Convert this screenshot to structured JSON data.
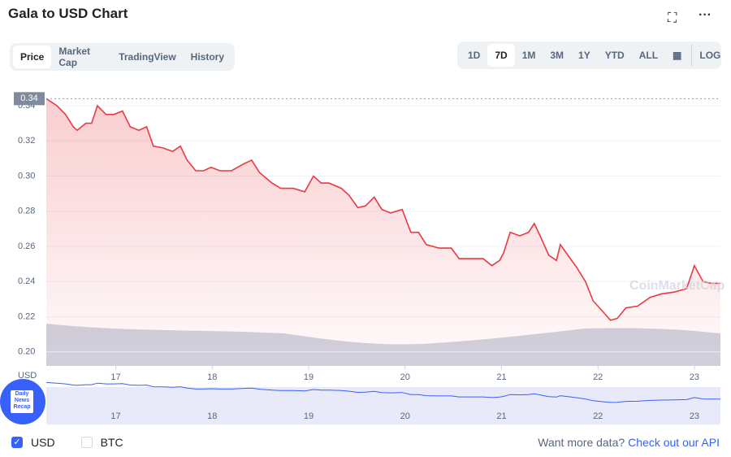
{
  "header": {
    "title": "Gala to USD Chart"
  },
  "tabs": {
    "items": [
      "Price",
      "Market Cap",
      "TradingView",
      "History"
    ],
    "active": 0
  },
  "ranges": {
    "items": [
      "1D",
      "7D",
      "1M",
      "3M",
      "1Y",
      "YTD",
      "ALL"
    ],
    "active": 1,
    "log": "LOG"
  },
  "badge": "Daily News Recap",
  "chart_data": {
    "type": "line",
    "y_label": "USD",
    "watermark": "CoinMarketCap",
    "x": [
      16.28,
      16.39,
      16.48,
      16.56,
      16.6,
      16.69,
      16.75,
      16.81,
      16.9,
      16.98,
      17.07,
      17.15,
      17.24,
      17.32,
      17.39,
      17.49,
      17.59,
      17.67,
      17.74,
      17.83,
      17.91,
      17.99,
      18.08,
      18.2,
      18.33,
      18.41,
      18.49,
      18.62,
      18.71,
      18.84,
      18.96,
      19.05,
      19.13,
      19.21,
      19.34,
      19.42,
      19.51,
      19.59,
      19.68,
      19.76,
      19.85,
      19.97,
      20.06,
      20.14,
      20.22,
      20.35,
      20.48,
      20.56,
      20.69,
      20.81,
      20.9,
      20.98,
      21.02,
      21.09,
      21.19,
      21.28,
      21.34,
      21.4,
      21.49,
      21.57,
      21.61,
      21.7,
      21.78,
      21.87,
      21.95,
      22.05,
      22.13,
      22.2,
      22.29,
      22.41,
      22.54,
      22.66,
      22.79,
      22.92,
      23.0,
      23.09,
      23.17,
      23.27
    ],
    "series": [
      {
        "name": "USD",
        "color": "#ea3943",
        "values": [
          0.344,
          0.34,
          0.335,
          0.328,
          0.326,
          0.33,
          0.33,
          0.34,
          0.335,
          0.335,
          0.337,
          0.328,
          0.326,
          0.328,
          0.317,
          0.316,
          0.314,
          0.317,
          0.309,
          0.303,
          0.303,
          0.305,
          0.303,
          0.303,
          0.307,
          0.309,
          0.302,
          0.296,
          0.293,
          0.293,
          0.291,
          0.3,
          0.296,
          0.296,
          0.293,
          0.289,
          0.282,
          0.283,
          0.288,
          0.281,
          0.279,
          0.281,
          0.268,
          0.268,
          0.261,
          0.259,
          0.259,
          0.253,
          0.253,
          0.253,
          0.249,
          0.252,
          0.256,
          0.268,
          0.266,
          0.268,
          0.273,
          0.266,
          0.255,
          0.252,
          0.261,
          0.254,
          0.248,
          0.24,
          0.229,
          0.223,
          0.218,
          0.219,
          0.225,
          0.226,
          0.231,
          0.233,
          0.234,
          0.236,
          0.249,
          0.24,
          0.239,
          0.239
        ]
      }
    ],
    "xlim": [
      16.28,
      23.27
    ],
    "xticks": [
      17,
      18,
      19,
      20,
      21,
      22,
      23
    ],
    "ylim": [
      0.192,
      0.346
    ],
    "yticks": [
      {
        "value": 0.2,
        "label": "0.20"
      },
      0.22,
      0.24,
      0.26,
      0.28,
      {
        "value": 0.3,
        "label": "0.30"
      },
      0.32,
      0.34
    ],
    "reference_line": {
      "value": 0.344,
      "label": "0.34"
    },
    "grid": true
  },
  "legend": {
    "items": [
      "USD",
      "BTC"
    ],
    "checked": [
      true,
      false
    ]
  },
  "footer": {
    "prompt": "Want more data?",
    "link": "Check out our API"
  }
}
